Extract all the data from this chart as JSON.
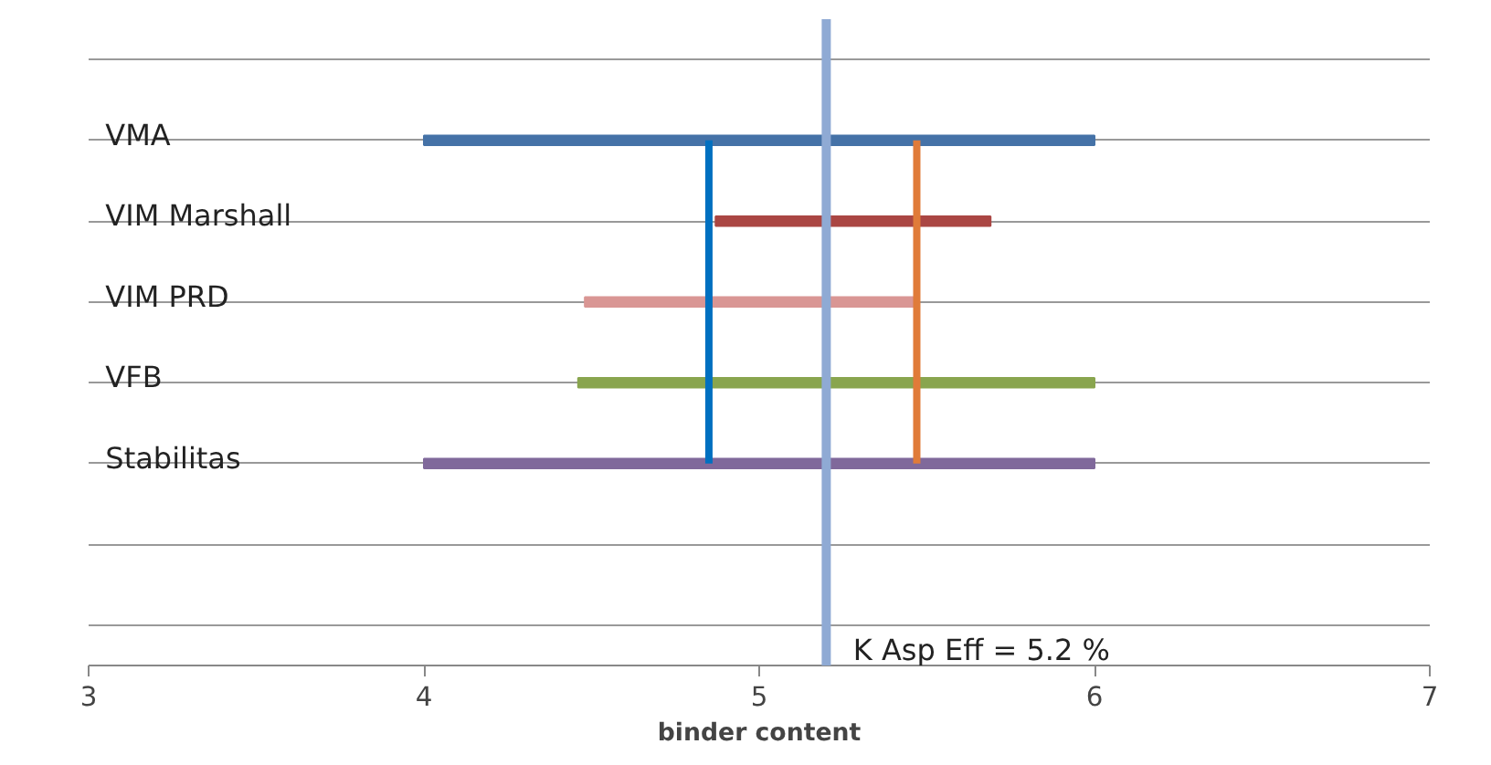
{
  "chart_data": {
    "type": "bar",
    "orientation": "horizontal",
    "xlabel": "binder content",
    "categories": [
      null,
      "VMA",
      "VIM Marshall",
      "VIM PRD",
      "VFB",
      "Stabilitas",
      null,
      null
    ],
    "base": [
      null,
      4,
      4.87,
      4.48,
      4.46,
      4,
      null,
      null
    ],
    "values": [
      null,
      2,
      0.82,
      0.99,
      1.54,
      2,
      null,
      null
    ],
    "colors": [
      null,
      "#4572a7",
      "#aa4643",
      "#d99694",
      "#89a54e",
      "#80699b",
      null,
      null
    ],
    "xlim": [
      3,
      7
    ],
    "xticks": [
      3,
      4,
      5,
      6,
      7
    ],
    "grid": "y",
    "ref_lines": [
      {
        "axis": "x",
        "value": 5.2,
        "label": "K Asp Eff = 5.2 %",
        "color": "#8faad4"
      },
      {
        "axis": "x",
        "value": 4.85,
        "label": null,
        "color": "#0070c0"
      },
      {
        "axis": "x",
        "value": 5.47,
        "label": null,
        "color": "#e07b39"
      }
    ]
  }
}
